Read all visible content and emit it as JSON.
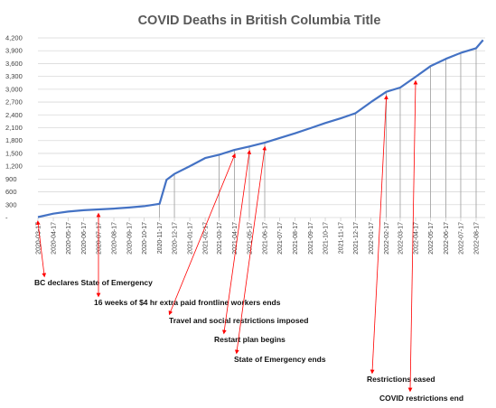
{
  "chart_data": {
    "type": "line",
    "title": "COVID Deaths in British Columbia Title",
    "xlabel": "",
    "ylabel": "",
    "ylim": [
      0,
      4200
    ],
    "yticks": [
      0,
      300,
      600,
      900,
      1200,
      1500,
      1800,
      2100,
      2400,
      2700,
      3000,
      3300,
      3600,
      3900,
      4200
    ],
    "ytick_labels": [
      "-",
      "300",
      "600",
      "900",
      "1,200",
      "1,500",
      "1,800",
      "2,100",
      "2,400",
      "2,700",
      "3,000",
      "3,300",
      "3,600",
      "3,900",
      "4,200"
    ],
    "x_tick_labels": [
      "2020-03-17",
      "2020-04-17",
      "2020-05-17",
      "2020-06-17",
      "2020-07-17",
      "2020-08-17",
      "2020-09-17",
      "2020-10-17",
      "2020-11-17",
      "2020-12-17",
      "2021-01-17",
      "2021-02-17",
      "2021-03-17",
      "2021-04-17",
      "2021-05-17",
      "2021-06-17",
      "2021-07-17",
      "2021-08-17",
      "2021-09-17",
      "2021-10-17",
      "2021-11-17",
      "2021-12-17",
      "2022-01-17",
      "2022-02-17",
      "2022-03-17",
      "2022-04-17",
      "2022-05-17",
      "2022-06-17",
      "2022-07-17",
      "2022-08-17"
    ],
    "grid": true,
    "series": [
      {
        "color": "#4472c4",
        "x": [
          "2020-03-17",
          "2020-04-17",
          "2020-05-17",
          "2020-06-17",
          "2020-07-17",
          "2020-08-17",
          "2020-09-17",
          "2020-10-17",
          "2020-11-17",
          "2020-12-01",
          "2020-12-17",
          "2021-01-17",
          "2021-02-17",
          "2021-03-17",
          "2021-04-17",
          "2021-05-17",
          "2021-06-17",
          "2021-07-17",
          "2021-08-17",
          "2021-09-17",
          "2021-10-17",
          "2021-11-17",
          "2021-12-17",
          "2022-01-17",
          "2022-02-17",
          "2022-03-17",
          "2022-04-17",
          "2022-05-17",
          "2022-06-17",
          "2022-07-17",
          "2022-08-17",
          "2022-08-31"
        ],
        "values": [
          10,
          90,
          140,
          170,
          190,
          210,
          235,
          265,
          320,
          880,
          1020,
          1200,
          1390,
          1470,
          1580,
          1660,
          1750,
          1860,
          1970,
          2090,
          2210,
          2320,
          2440,
          2700,
          2940,
          3040,
          3290,
          3540,
          3710,
          3850,
          3960,
          4150
        ]
      }
    ],
    "highlight_lines_at": [
      "2020-11-17",
      "2020-12-17",
      "2021-03-17",
      "2021-04-17",
      "2021-05-17",
      "2021-06-17",
      "2021-12-17",
      "2022-02-17",
      "2022-03-17",
      "2022-05-17",
      "2022-06-17",
      "2022-07-17",
      "2022-08-17"
    ],
    "annotations": [
      {
        "text": "BC declares State of Emergency",
        "date": "2020-03-17",
        "color": "#ff0000"
      },
      {
        "text": "16 weeks of $4 hr extra paid frontline workers ends",
        "date": "2020-07-17",
        "color": "#ff0000"
      },
      {
        "text": "Travel and social restrictions imposed",
        "date": "2021-04-17",
        "color": "#ff0000"
      },
      {
        "text": "Restart plan begins",
        "date": "2021-05-17",
        "color": "#ff0000"
      },
      {
        "text": "State of Emergency ends",
        "date": "2021-06-17",
        "color": "#ff0000"
      },
      {
        "text": "Restrictions eased",
        "date": "2022-02-17",
        "color": "#ff0000"
      },
      {
        "text": "COVID restrictions end",
        "date": "2022-04-17",
        "color": "#ff0000"
      }
    ]
  }
}
